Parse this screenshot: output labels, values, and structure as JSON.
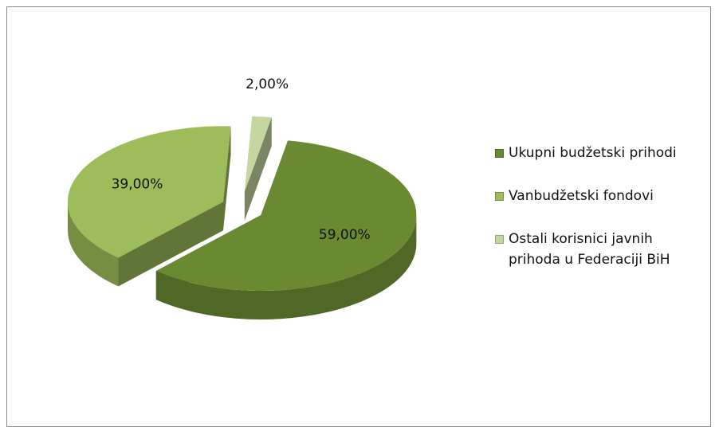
{
  "chart_data": {
    "type": "pie",
    "categories": [
      "Ukupni budžetski prihodi",
      "Vanbudžetski fondovi",
      "Ostali korisnici javnih prihoda u Federaciji BiH"
    ],
    "values": [
      59,
      39,
      2
    ],
    "value_labels": [
      "59,00%",
      "39,00%",
      "2,00%"
    ],
    "colors": [
      "#6a8a32",
      "#9dbd5a",
      "#c4d7a0"
    ],
    "legend": "right"
  }
}
